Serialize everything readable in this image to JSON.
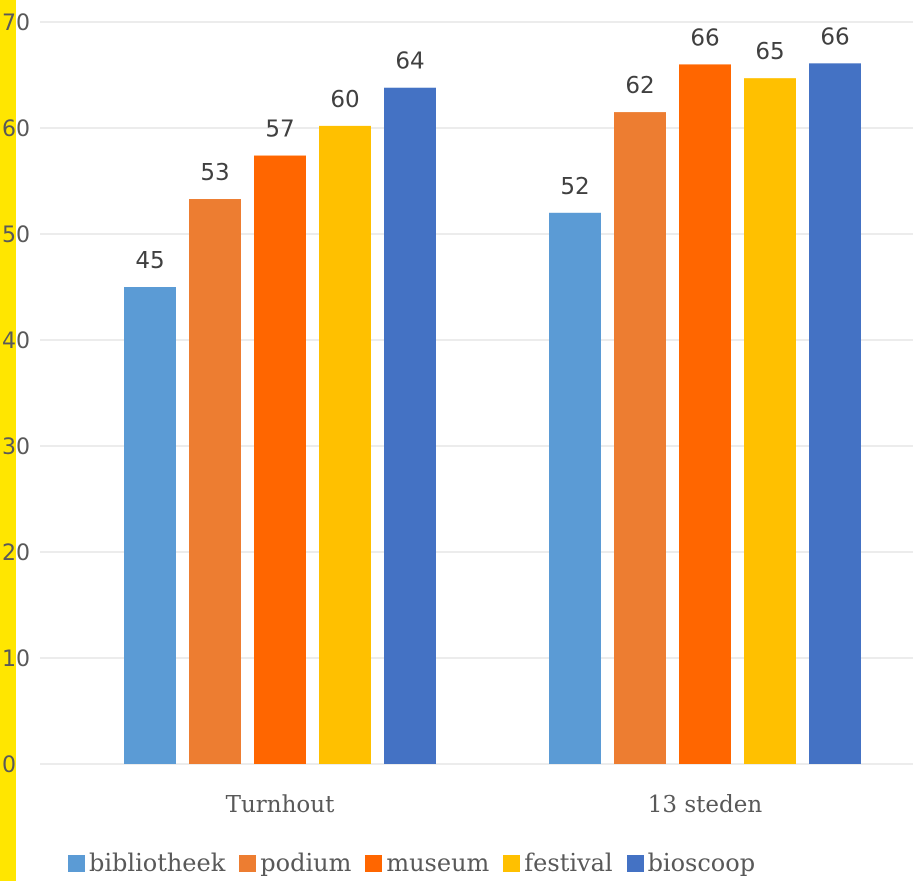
{
  "chart_data": {
    "type": "bar",
    "categories": [
      "Turnhout",
      "13 steden"
    ],
    "series": [
      {
        "name": "bibliotheek",
        "values": [
          45,
          52
        ],
        "labels": [
          "45",
          "52"
        ],
        "color": "#5b9bd5"
      },
      {
        "name": "podium",
        "values": [
          53.3,
          61.5
        ],
        "labels": [
          "53",
          "62"
        ],
        "color": "#ed7d31"
      },
      {
        "name": "museum",
        "values": [
          57.4,
          66
        ],
        "labels": [
          "57",
          "66"
        ],
        "color": "#ff6600"
      },
      {
        "name": "festival",
        "values": [
          60.2,
          64.7
        ],
        "labels": [
          "60",
          "65"
        ],
        "color": "#ffc000"
      },
      {
        "name": "bioscoop",
        "values": [
          63.8,
          66.1
        ],
        "labels": [
          "64",
          "66"
        ],
        "color": "#4472c4"
      }
    ],
    "ylim": [
      0,
      70
    ],
    "yticks": [
      "0",
      "10",
      "20",
      "30",
      "40",
      "50",
      "60",
      "70"
    ],
    "grid": true,
    "legend_position": "bottom",
    "title": "",
    "xlabel": "",
    "ylabel": ""
  },
  "colors": {
    "accent_strip": "#ffe600",
    "gridline": "#d9d9d9"
  }
}
